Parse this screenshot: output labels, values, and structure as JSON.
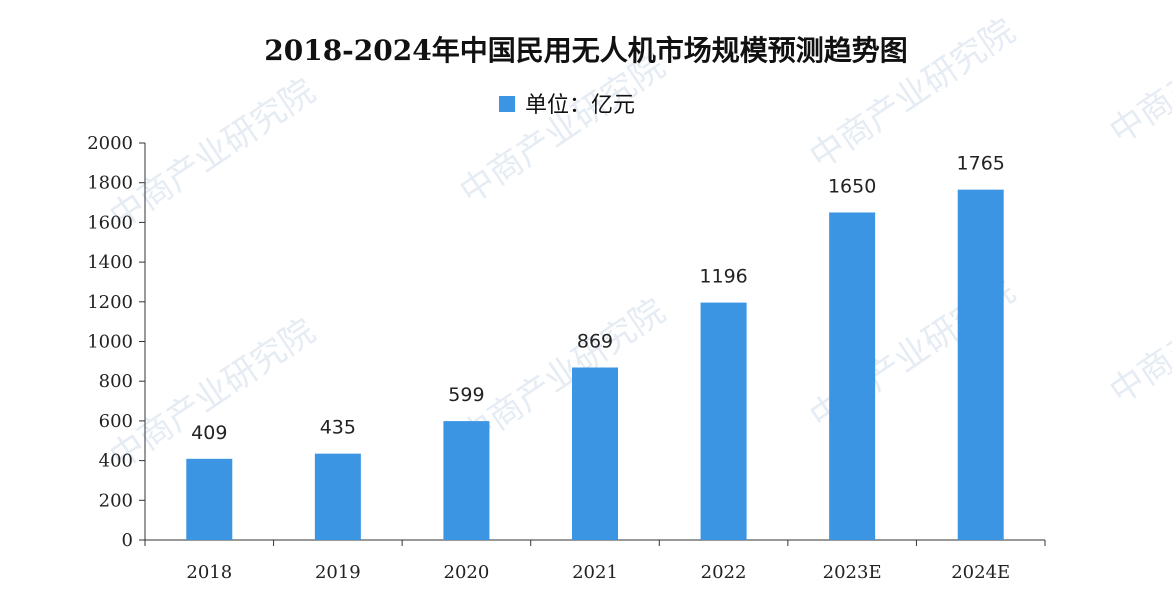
{
  "watermark": "中商产业研究院",
  "chart_data": {
    "type": "bar",
    "title": "2018-2024年中国民用无人机市场规模预测趋势图",
    "legend": {
      "label": "单位：亿元",
      "placement": "top-center"
    },
    "categories": [
      "2018",
      "2019",
      "2020",
      "2021",
      "2022",
      "2023E",
      "2024E"
    ],
    "series": [
      {
        "name": "单位：亿元",
        "values": [
          409,
          435,
          599,
          869,
          1196,
          1650,
          1765
        ]
      }
    ],
    "data_labels": [
      "409",
      "435",
      "599",
      "869",
      "1196",
      "1650",
      "1765"
    ],
    "y_ticks": [
      0,
      200,
      400,
      600,
      800,
      1000,
      1200,
      1400,
      1600,
      1800,
      2000
    ],
    "ylim": [
      0,
      2000
    ],
    "grid": false,
    "bar_color": "#3b95e2"
  }
}
